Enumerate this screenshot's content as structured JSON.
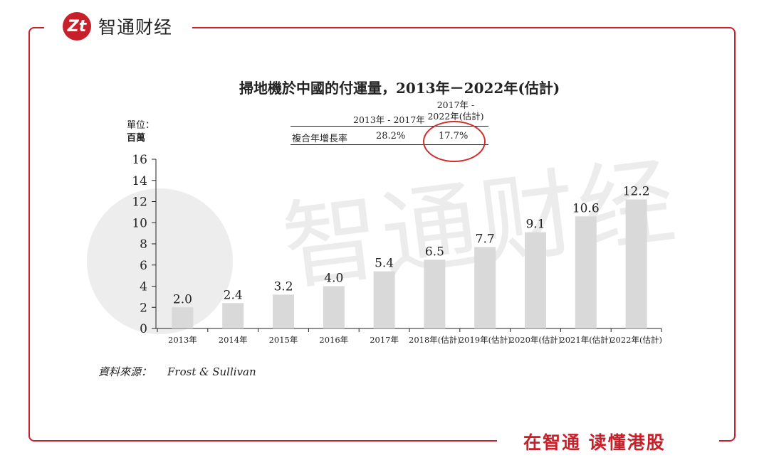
{
  "brand": {
    "logo_mark": "Zt",
    "logo_text": "智通财经",
    "watermark_text": "智通财经",
    "slogan": "在智通 读懂港股"
  },
  "chart_data": {
    "type": "bar",
    "title": "掃地機於中國的付運量，2013年－2022年(估計)",
    "unit_label_1": "單位：",
    "unit_label_2": "百萬",
    "categories": [
      "2013年",
      "2014年",
      "2015年",
      "2016年",
      "2017年",
      "2018年(估計)",
      "2019年(估計)",
      "2020年(估計)",
      "2021年(估計)",
      "2022年(估計)"
    ],
    "values": [
      2.0,
      2.4,
      3.2,
      4.0,
      5.4,
      6.5,
      7.7,
      9.1,
      10.6,
      12.2
    ],
    "value_labels": [
      "2.0",
      "2.4",
      "3.2",
      "4.0",
      "5.4",
      "6.5",
      "7.7",
      "9.1",
      "10.6",
      "12.2"
    ],
    "yticks": [
      0,
      2,
      4,
      6,
      8,
      10,
      12,
      14,
      16
    ],
    "ylim": [
      0,
      16
    ],
    "grid": false,
    "bar_color": "#d9d9d9",
    "cagr_table": {
      "col1_header": "2013年 - 2017年",
      "col2_header_line1": "2017年 -",
      "col2_header_line2": "2022年(估計)",
      "row_label": "複合年增長率",
      "col1_value": "28.2%",
      "col2_value": "17.7%"
    },
    "source_label": "資料來源：",
    "source_value": "Frost & Sullivan",
    "highlight_color": "#d42a2a"
  }
}
